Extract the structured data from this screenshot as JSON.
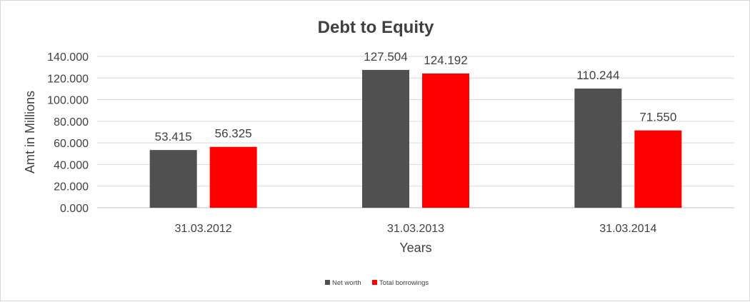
{
  "chart_data": {
    "type": "bar",
    "title": "Debt to Equity",
    "xlabel": "Years",
    "ylabel": "Amt in Millions",
    "categories": [
      "31.03.2012",
      "31.03.2013",
      "31.03.2014"
    ],
    "series": [
      {
        "name": "Net worth",
        "values": [
          53.415,
          127.504,
          110.244
        ],
        "labels": [
          "53.415",
          "127.504",
          "110.244"
        ],
        "color": "#505050"
      },
      {
        "name": "Total borrowings",
        "values": [
          56.325,
          124.192,
          71.55
        ],
        "labels": [
          "56.325",
          "124.192",
          "71.550"
        ],
        "color": "#ff0000"
      }
    ],
    "ylim": [
      0,
      140
    ],
    "yticks": [
      0,
      20,
      40,
      60,
      80,
      100,
      120,
      140
    ],
    "ytick_labels": [
      "0.000",
      "20.000",
      "40.000",
      "60.000",
      "80.000",
      "100.000",
      "120.000",
      "140.000"
    ],
    "grid": true,
    "legend": "bottom"
  }
}
